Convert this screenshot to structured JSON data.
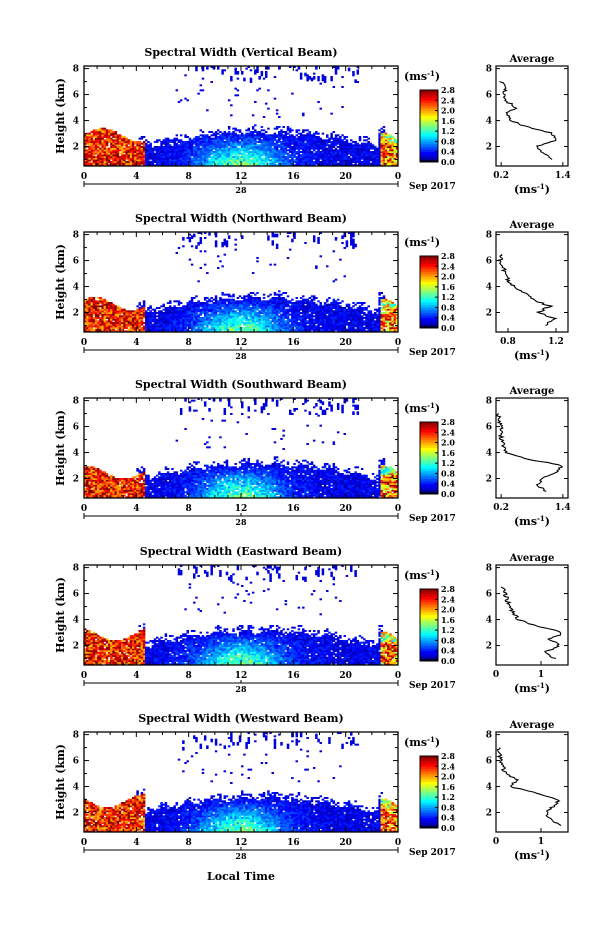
{
  "figure": {
    "x_axis_label": "Local Time",
    "date_label": "Sep 2017",
    "day_label": "28",
    "unit_label": "(ms",
    "unit_exponent": "-1",
    "unit_close": ")",
    "avg_title": "Average"
  },
  "chart_data": [
    {
      "type": "heatmap",
      "title": "Spectral Width (Vertical Beam)",
      "ylabel": "Height (km)",
      "xlabel": "",
      "x_ticks": [
        "0",
        "4",
        "8",
        "12",
        "16",
        "20",
        "0"
      ],
      "x_range_hours": [
        0,
        24
      ],
      "y_ticks": [
        "2",
        "4",
        "6",
        "8"
      ],
      "y_range_km": [
        0.5,
        8.2
      ],
      "colorbar": {
        "range": [
          0,
          2.8
        ],
        "ticks": [
          "2.8",
          "2.4",
          "2.0",
          "1.6",
          "1.2",
          "0.8",
          "0.4",
          "0.0"
        ]
      },
      "average_profile": {
        "title": "Average",
        "x_ticks": [
          "0.2",
          "1.4"
        ],
        "x_range": [
          0.1,
          1.5
        ],
        "y_ticks": [
          "2",
          "4",
          "6",
          "8"
        ],
        "points": [
          [
            1.2,
            1.0
          ],
          [
            1.0,
            1.5
          ],
          [
            0.9,
            2.0
          ],
          [
            1.3,
            2.5
          ],
          [
            1.2,
            3.0
          ],
          [
            0.7,
            3.5
          ],
          [
            0.4,
            4.0
          ],
          [
            0.3,
            4.5
          ],
          [
            0.5,
            5.0
          ],
          [
            0.3,
            5.5
          ],
          [
            0.25,
            6.0
          ],
          [
            0.3,
            6.5
          ],
          [
            0.2,
            7.0
          ]
        ]
      }
    },
    {
      "type": "heatmap",
      "title": "Spectral Width (Northward Beam)",
      "ylabel": "Height (km)",
      "xlabel": "",
      "x_ticks": [
        "0",
        "4",
        "8",
        "12",
        "16",
        "20",
        "0"
      ],
      "x_range_hours": [
        0,
        24
      ],
      "y_ticks": [
        "2",
        "4",
        "6",
        "8"
      ],
      "y_range_km": [
        0.5,
        8.2
      ],
      "colorbar": {
        "range": [
          0,
          2.8
        ],
        "ticks": [
          "2.8",
          "2.4",
          "2.0",
          "1.6",
          "1.2",
          "0.8",
          "0.4",
          "0.0"
        ]
      },
      "average_profile": {
        "title": "Average",
        "x_ticks": [
          "0.8",
          "1.2"
        ],
        "x_range": [
          0.7,
          1.3
        ],
        "y_ticks": [
          "2",
          "4",
          "6",
          "8"
        ],
        "points": [
          [
            1.1,
            1.0
          ],
          [
            1.2,
            1.5
          ],
          [
            1.05,
            2.0
          ],
          [
            1.15,
            2.5
          ],
          [
            1.0,
            3.0
          ],
          [
            0.95,
            3.5
          ],
          [
            0.85,
            4.0
          ],
          [
            0.8,
            4.5
          ],
          [
            0.78,
            5.0
          ],
          [
            0.76,
            5.5
          ],
          [
            0.74,
            6.0
          ],
          [
            0.73,
            6.5
          ]
        ]
      }
    },
    {
      "type": "heatmap",
      "title": "Spectral Width (Southward Beam)",
      "ylabel": "Height (km)",
      "xlabel": "",
      "x_ticks": [
        "0",
        "4",
        "8",
        "12",
        "16",
        "20",
        "0"
      ],
      "x_range_hours": [
        0,
        24
      ],
      "y_ticks": [
        "2",
        "4",
        "6",
        "8"
      ],
      "y_range_km": [
        0.5,
        8.2
      ],
      "colorbar": {
        "range": [
          0,
          2.8
        ],
        "ticks": [
          "2.8",
          "2.4",
          "2.0",
          "1.6",
          "1.2",
          "0.8",
          "0.4",
          "0.0"
        ]
      },
      "average_profile": {
        "title": "Average",
        "x_ticks": [
          "0.2",
          "1.4"
        ],
        "x_range": [
          0.1,
          1.5
        ],
        "y_ticks": [
          "2",
          "4",
          "6",
          "8"
        ],
        "points": [
          [
            1.1,
            1.0
          ],
          [
            0.9,
            1.5
          ],
          [
            1.0,
            2.0
          ],
          [
            1.3,
            2.5
          ],
          [
            1.4,
            3.0
          ],
          [
            0.7,
            3.5
          ],
          [
            0.3,
            4.0
          ],
          [
            0.25,
            4.5
          ],
          [
            0.2,
            5.0
          ],
          [
            0.2,
            6.0
          ],
          [
            0.15,
            7.0
          ]
        ]
      }
    },
    {
      "type": "heatmap",
      "title": "Spectral Width (Eastward Beam)",
      "ylabel": "Height (km)",
      "xlabel": "",
      "x_ticks": [
        "0",
        "4",
        "8",
        "12",
        "16",
        "20",
        "0"
      ],
      "x_range_hours": [
        0,
        24
      ],
      "y_ticks": [
        "2",
        "4",
        "6",
        "8"
      ],
      "y_range_km": [
        0.5,
        8.2
      ],
      "colorbar": {
        "range": [
          0,
          2.8
        ],
        "ticks": [
          "2.8",
          "2.4",
          "2.0",
          "1.6",
          "1.2",
          "0.8",
          "0.4",
          "0.0"
        ]
      },
      "average_profile": {
        "title": "Average",
        "x_ticks": [
          "0",
          "1"
        ],
        "x_range": [
          0,
          1.6
        ],
        "y_ticks": [
          "2",
          "4",
          "6",
          "8"
        ],
        "points": [
          [
            1.3,
            1.0
          ],
          [
            1.1,
            1.5
          ],
          [
            1.4,
            2.0
          ],
          [
            1.2,
            2.5
          ],
          [
            1.5,
            3.0
          ],
          [
            0.9,
            3.5
          ],
          [
            0.5,
            4.0
          ],
          [
            0.4,
            4.5
          ],
          [
            0.3,
            5.0
          ],
          [
            0.2,
            6.0
          ],
          [
            0.15,
            6.5
          ]
        ]
      }
    },
    {
      "type": "heatmap",
      "title": "Spectral Width (Westward Beam)",
      "ylabel": "Height (km)",
      "xlabel": "Local Time",
      "x_ticks": [
        "0",
        "4",
        "8",
        "12",
        "16",
        "20",
        "0"
      ],
      "x_range_hours": [
        0,
        24
      ],
      "y_ticks": [
        "2",
        "4",
        "6",
        "8"
      ],
      "y_range_km": [
        0.5,
        8.2
      ],
      "colorbar": {
        "range": [
          0,
          2.8
        ],
        "ticks": [
          "2.8",
          "2.4",
          "2.0",
          "1.6",
          "1.2",
          "0.8",
          "0.4",
          "0.0"
        ]
      },
      "average_profile": {
        "title": "Average",
        "x_ticks": [
          "0",
          "1"
        ],
        "x_range": [
          0,
          1.6
        ],
        "y_ticks": [
          "2",
          "4",
          "6",
          "8"
        ],
        "points": [
          [
            1.4,
            1.0
          ],
          [
            1.2,
            1.5
          ],
          [
            1.1,
            2.0
          ],
          [
            1.3,
            2.5
          ],
          [
            1.4,
            3.0
          ],
          [
            0.9,
            3.5
          ],
          [
            0.3,
            4.0
          ],
          [
            0.5,
            4.5
          ],
          [
            0.2,
            5.0
          ],
          [
            0.1,
            6.0
          ],
          [
            0.05,
            7.0
          ]
        ]
      }
    }
  ]
}
